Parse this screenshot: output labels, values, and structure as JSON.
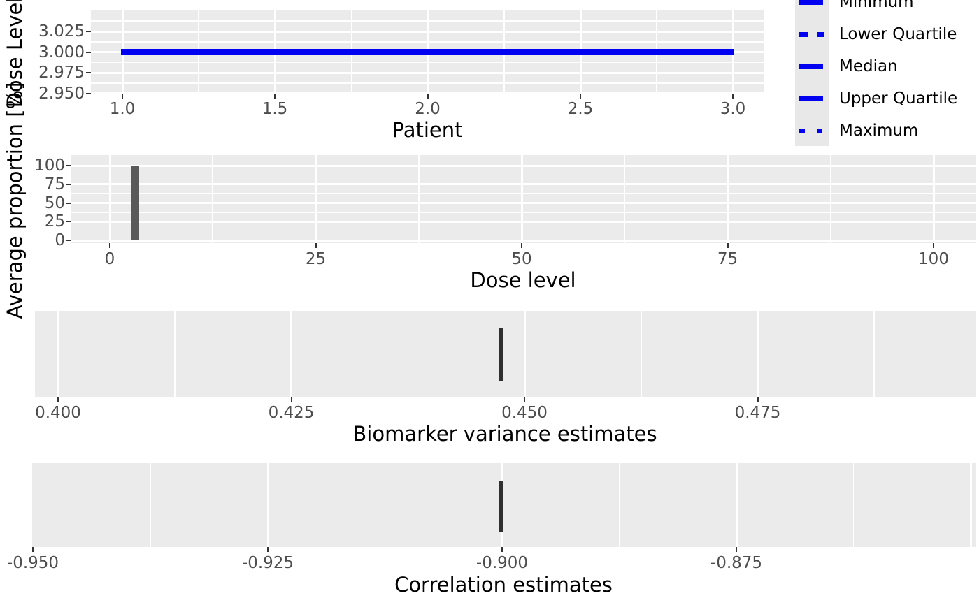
{
  "colors": {
    "panel_background": "#EBEBEB",
    "grid_line": "#FFFFFF",
    "tick_mark": "#333333",
    "tick_label": "#4D4D4D",
    "axis_title": "#000000",
    "statistic_line_blue": "#0101F1",
    "bar_gray": "#595959",
    "estimate_mark_dark": "#2F2F2F",
    "legend_key_background": "#E8E8E8",
    "legend_text": "#000000"
  },
  "chart_data": [
    {
      "type": "line",
      "panel": "dose-level-vs-patient",
      "xlabel": "Patient",
      "ylabel": "Dose Level",
      "x_range": [
        0.9,
        3.1
      ],
      "y_range": [
        2.945,
        3.055
      ],
      "grid": true,
      "legend_position": "right",
      "line_color": "#0101F1",
      "xticks": {
        "values": [
          1.0,
          1.5,
          2.0,
          2.5,
          3.0
        ],
        "labels": [
          "1.0",
          "1.5",
          "2.0",
          "2.5",
          "3.0"
        ]
      },
      "yticks": {
        "values": [
          3.025,
          3.0,
          2.975,
          2.95
        ],
        "labels": [
          "3.025",
          "3.000",
          "2.975",
          "2.950"
        ]
      },
      "series": [
        {
          "name": "Minimum",
          "linetype": "solid",
          "x": [
            1.0,
            3.0
          ],
          "y": [
            3.0,
            3.0
          ]
        },
        {
          "name": "Lower Quartile",
          "linetype": "dashed",
          "x": [
            1.0,
            3.0
          ],
          "y": [
            3.0,
            3.0
          ]
        },
        {
          "name": "Median",
          "linetype": "solid",
          "x": [
            1.0,
            3.0
          ],
          "y": [
            3.0,
            3.0
          ]
        },
        {
          "name": "Upper Quartile",
          "linetype": "solid",
          "x": [
            1.0,
            3.0
          ],
          "y": [
            3.0,
            3.0
          ]
        },
        {
          "name": "Maximum",
          "linetype": "dotted",
          "x": [
            1.0,
            3.0
          ],
          "y": [
            3.0,
            3.0
          ]
        }
      ]
    },
    {
      "type": "bar",
      "panel": "average-proportion-vs-dose-level",
      "xlabel": "Dose level",
      "ylabel": "Average proportion [%]",
      "x_range": [
        -4.3,
        105.1
      ],
      "y_range": [
        -1.5,
        114.0
      ],
      "grid": true,
      "bar_color": "#595959",
      "xticks": {
        "values": [
          0,
          25,
          50,
          75,
          100
        ],
        "labels": [
          "0",
          "25",
          "50",
          "75",
          "100"
        ]
      },
      "yticks": {
        "values": [
          100,
          75,
          50,
          25,
          0
        ],
        "labels": [
          "100",
          "75",
          "50",
          "25",
          "0"
        ]
      },
      "bars": [
        {
          "x": 3,
          "height": 100
        }
      ]
    },
    {
      "type": "boxplot",
      "panel": "biomarker-variance-estimates",
      "xlabel": "Biomarker variance estimates",
      "ylabel": "",
      "x_range": [
        0.3975,
        0.4984
      ],
      "grid": true,
      "mark_color": "#2F2F2F",
      "xticks": {
        "values": [
          0.4,
          0.425,
          0.45,
          0.475
        ],
        "labels": [
          "0.400",
          "0.425",
          "0.450",
          "0.475"
        ]
      },
      "values": [
        0.447
      ]
    },
    {
      "type": "boxplot",
      "panel": "correlation-estimates",
      "xlabel": "Correlation estimates",
      "ylabel": "",
      "x_range": [
        -0.9501,
        -0.8495
      ],
      "grid": true,
      "mark_color": "#2F2F2F",
      "xticks": {
        "values": [
          -0.95,
          -0.925,
          -0.9,
          -0.875
        ],
        "labels": [
          "-0.950",
          "-0.925",
          "-0.900",
          "-0.875"
        ]
      },
      "values": [
        -0.9
      ]
    }
  ],
  "legend": {
    "line_color": "#0101F1",
    "entries": [
      {
        "label": "Minimum",
        "linetype": "solid"
      },
      {
        "label": "Lower Quartile",
        "linetype": "dashed"
      },
      {
        "label": "Median",
        "linetype": "solid"
      },
      {
        "label": "Upper Quartile",
        "linetype": "solid"
      },
      {
        "label": "Maximum",
        "linetype": "dotted"
      }
    ]
  }
}
